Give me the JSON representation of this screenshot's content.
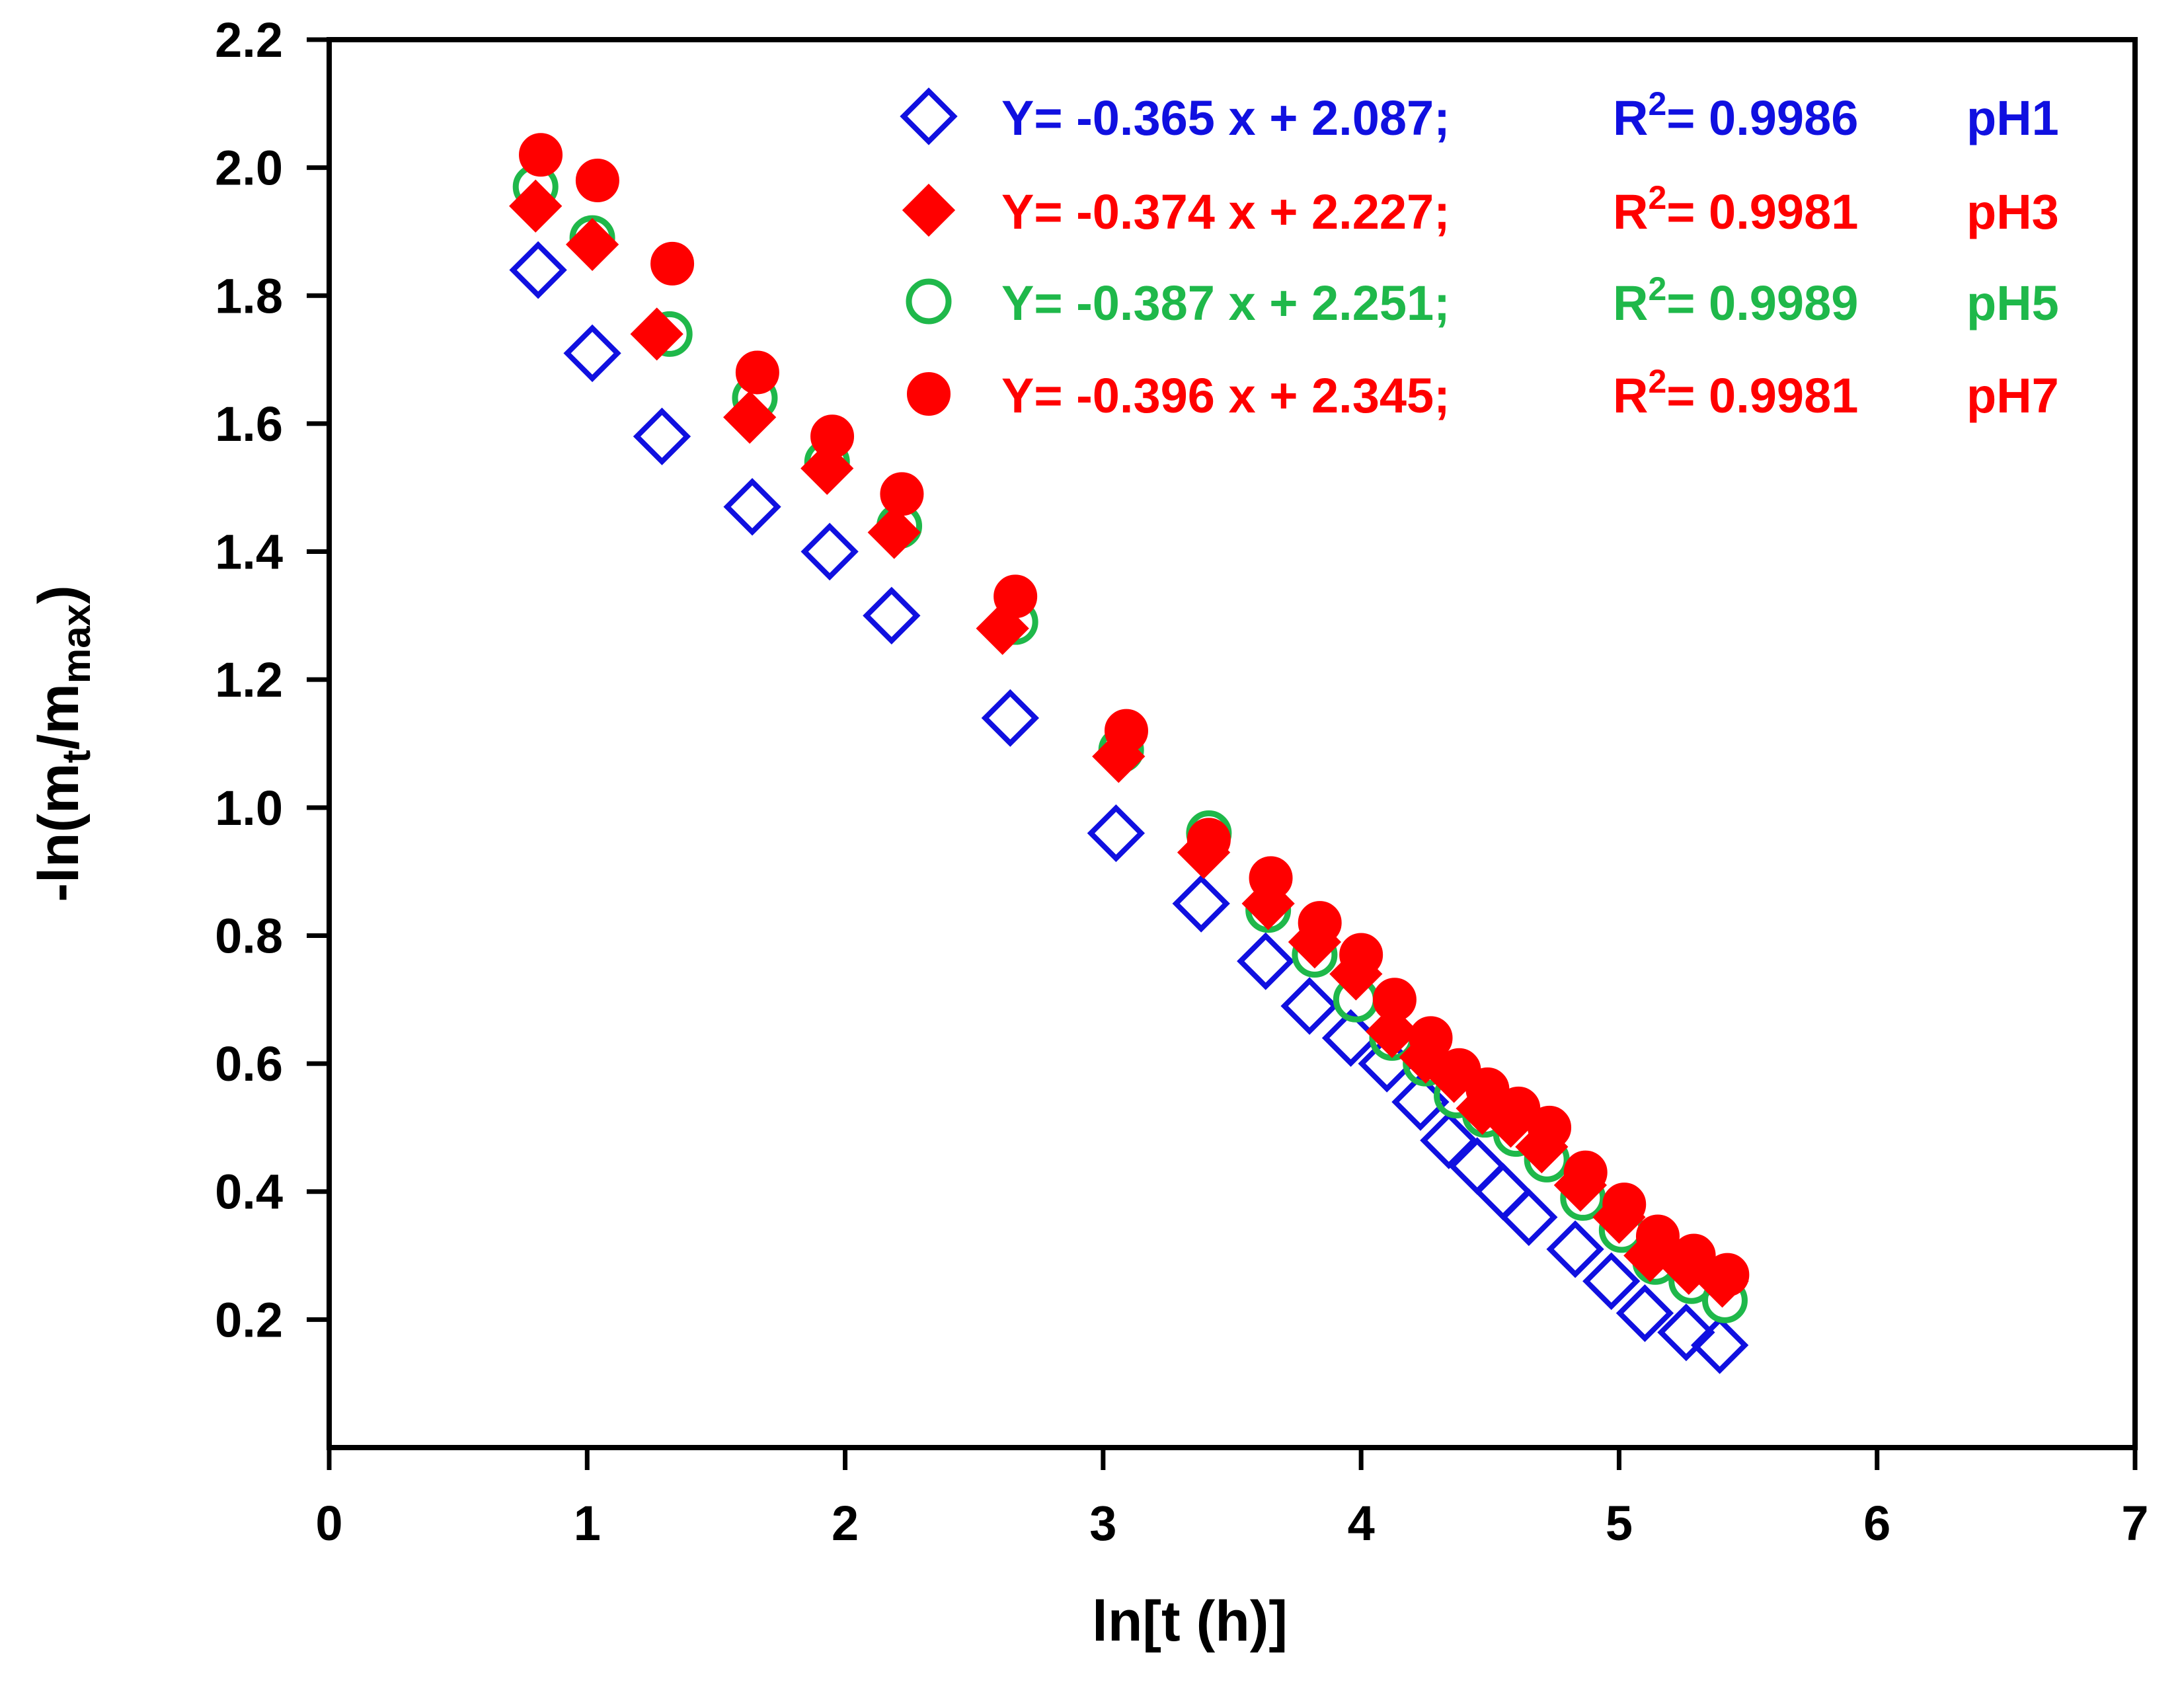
{
  "chart_data": {
    "type": "scatter",
    "title": "",
    "xlabel": "ln[t (h)]",
    "ylabel": {
      "prefix": "-ln(m",
      "sub1": "t",
      "mid": "/m",
      "sub2": "max",
      "suffix": ")"
    },
    "xlim": [
      0,
      7
    ],
    "ylim": [
      0.0,
      2.2
    ],
    "xticks": [
      "0",
      "1",
      "2",
      "3",
      "4",
      "5",
      "6",
      "7"
    ],
    "yticks": [
      "0.2",
      "0.4",
      "0.6",
      "0.8",
      "1.0",
      "1.2",
      "1.4",
      "1.6",
      "1.8",
      "2.0",
      "2.2"
    ],
    "grid": false,
    "legend_position": "top-right",
    "series": [
      {
        "name": "pH1",
        "marker": "diamond-open",
        "color": "#1010e0",
        "equation": "Y= -0.365 x + 2.087;",
        "r2_label": "R",
        "r2_sup": "2",
        "r2_value": "= 0.9986",
        "x": [
          0.81,
          1.02,
          1.29,
          1.64,
          1.94,
          2.18,
          2.64,
          3.05,
          3.38,
          3.63,
          3.8,
          3.96,
          4.1,
          4.23,
          4.34,
          4.45,
          4.55,
          4.65,
          4.83,
          4.97,
          5.1,
          5.26,
          5.39
        ],
        "y": [
          1.84,
          1.71,
          1.58,
          1.47,
          1.4,
          1.3,
          1.14,
          0.96,
          0.85,
          0.76,
          0.69,
          0.64,
          0.6,
          0.54,
          0.48,
          0.44,
          0.4,
          0.36,
          0.31,
          0.26,
          0.21,
          0.18,
          0.16
        ]
      },
      {
        "name": "pH3",
        "marker": "diamond-filled",
        "color": "#ff0000",
        "equation": "Y= -0.374 x + 2.227;",
        "r2_label": "R",
        "r2_sup": "2",
        "r2_value": "= 0.9981",
        "x": [
          0.8,
          1.02,
          1.27,
          1.63,
          1.93,
          2.19,
          2.61,
          3.06,
          3.39,
          3.64,
          3.82,
          3.98,
          4.12,
          4.25,
          4.36,
          4.47,
          4.58,
          4.7,
          4.85,
          5.0,
          5.12,
          5.27,
          5.4
        ],
        "y": [
          1.94,
          1.88,
          1.74,
          1.61,
          1.53,
          1.43,
          1.28,
          1.08,
          0.93,
          0.85,
          0.79,
          0.74,
          0.65,
          0.61,
          0.58,
          0.53,
          0.51,
          0.47,
          0.41,
          0.36,
          0.3,
          0.28,
          0.26
        ]
      },
      {
        "name": "pH5",
        "marker": "circle-open",
        "color": "#1fb84a",
        "equation": "Y= -0.387 x + 2.251;",
        "r2_label": "R",
        "r2_sup": "2",
        "r2_value": "= 0.9989",
        "x": [
          0.8,
          1.02,
          1.32,
          1.65,
          1.93,
          2.21,
          2.66,
          3.07,
          3.41,
          3.64,
          3.82,
          3.98,
          4.12,
          4.25,
          4.37,
          4.48,
          4.6,
          4.72,
          4.86,
          5.01,
          5.14,
          5.28,
          5.41
        ],
        "y": [
          1.97,
          1.89,
          1.74,
          1.64,
          1.54,
          1.44,
          1.29,
          1.09,
          0.96,
          0.84,
          0.77,
          0.7,
          0.64,
          0.6,
          0.55,
          0.52,
          0.49,
          0.45,
          0.39,
          0.34,
          0.29,
          0.26,
          0.23
        ]
      },
      {
        "name": "pH7",
        "marker": "circle-filled",
        "color": "#ff0000",
        "equation": "Y= -0.396 x + 2.345;",
        "r2_label": "R",
        "r2_sup": "2",
        "r2_value": "= 0.9981",
        "x": [
          0.82,
          1.04,
          1.33,
          1.66,
          1.95,
          2.22,
          2.66,
          3.09,
          3.41,
          3.65,
          3.84,
          4.0,
          4.13,
          4.27,
          4.38,
          4.49,
          4.61,
          4.73,
          4.87,
          5.02,
          5.15,
          5.29,
          5.42
        ],
        "y": [
          2.02,
          1.98,
          1.85,
          1.68,
          1.58,
          1.49,
          1.33,
          1.12,
          0.95,
          0.89,
          0.82,
          0.77,
          0.7,
          0.64,
          0.59,
          0.56,
          0.53,
          0.5,
          0.43,
          0.38,
          0.33,
          0.3,
          0.27
        ]
      }
    ]
  }
}
